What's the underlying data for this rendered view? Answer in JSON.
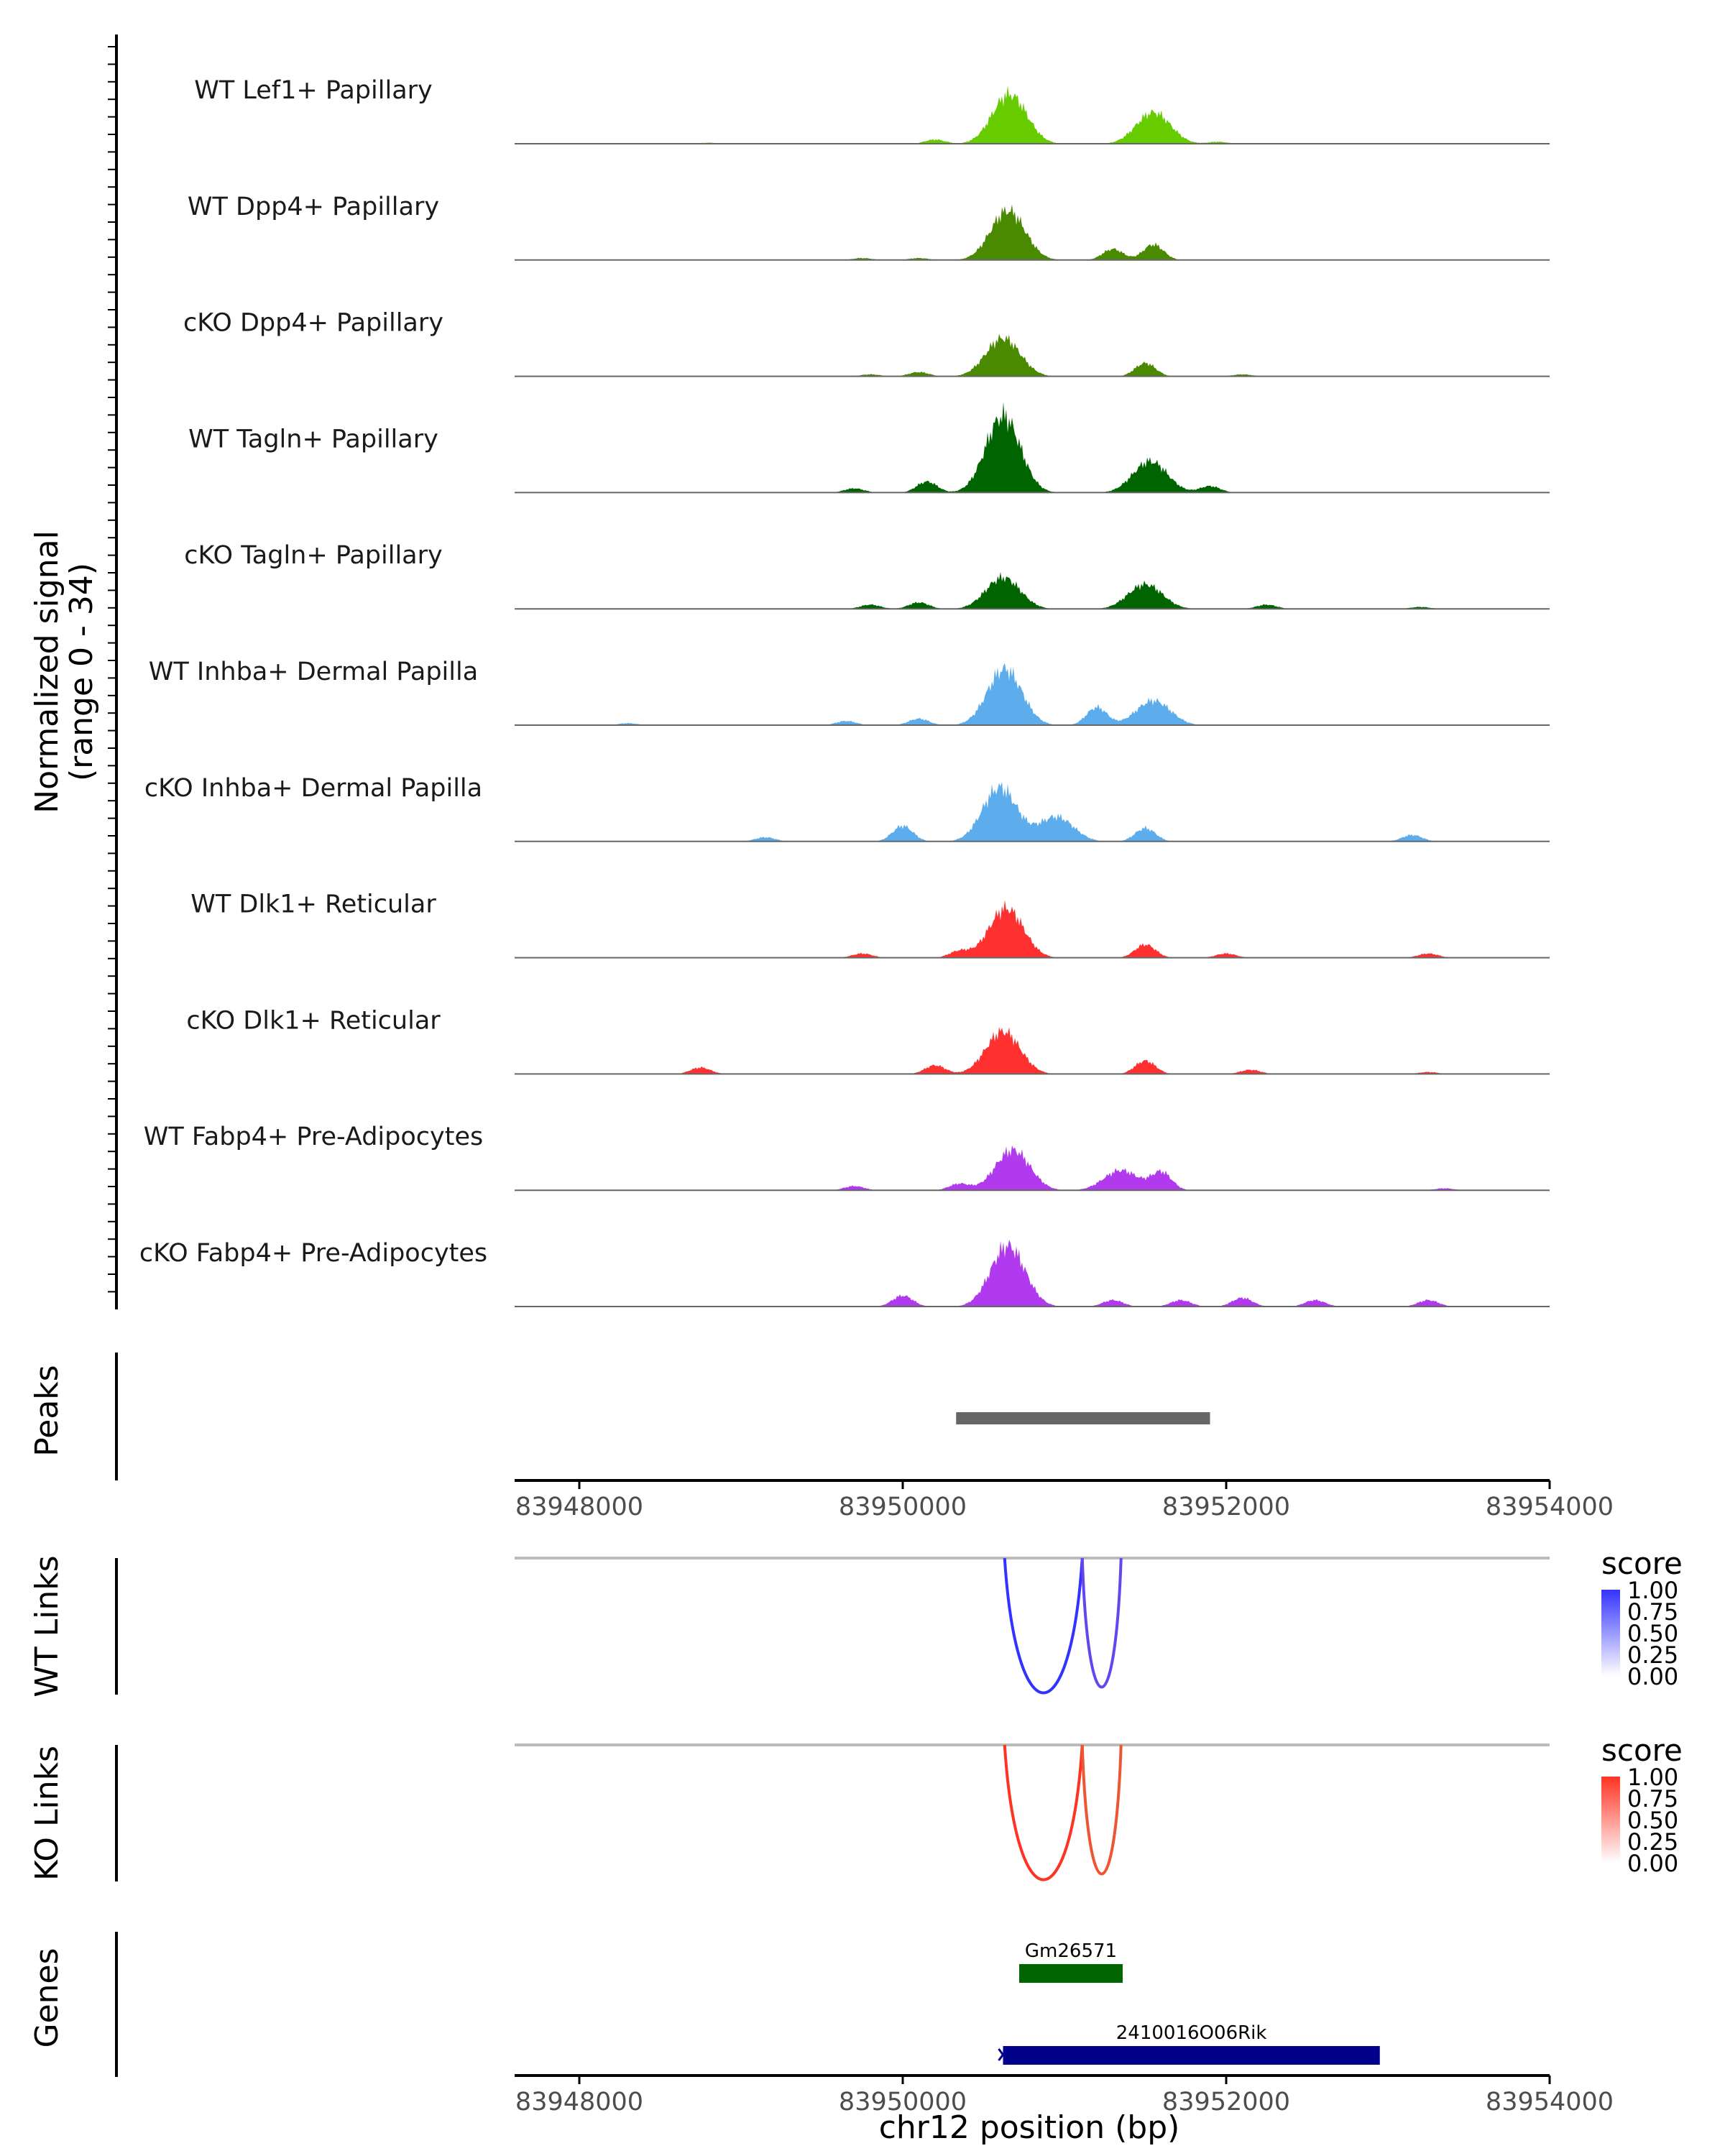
{
  "chart_data": {
    "type": "area",
    "region": "chr12",
    "x_range": [
      83947600,
      83954000
    ],
    "x_ticks": [
      83948000,
      83950000,
      83952000,
      83954000
    ],
    "x_tick_labels": [
      "83948000",
      "83950000",
      "83952000",
      "83954000"
    ],
    "xlabel": "chr12 position (bp)",
    "coverage": {
      "ylabel_line1": "Normalized signal",
      "ylabel_line2": "(range 0 - 34)",
      "ylim": [
        0,
        34
      ],
      "tracks": [
        {
          "name": "WT Lef1+ Papillary",
          "color": "#66CC00",
          "peaks": [
            [
              83950660,
              22
            ],
            [
              83951550,
              14
            ],
            [
              83950200,
              2
            ],
            [
              83951950,
              1
            ],
            [
              83948800,
              0.6
            ]
          ]
        },
        {
          "name": "WT Dpp4+ Papillary",
          "color": "#4A8A00",
          "peaks": [
            [
              83950650,
              22
            ],
            [
              83951300,
              5
            ],
            [
              83951550,
              7
            ],
            [
              83949750,
              1
            ],
            [
              83950100,
              1
            ]
          ]
        },
        {
          "name": "cKO Dpp4+ Papillary",
          "color": "#4A8A00",
          "peaks": [
            [
              83950620,
              17
            ],
            [
              83951500,
              6
            ],
            [
              83950100,
              2
            ],
            [
              83949800,
              1
            ],
            [
              83952100,
              1
            ]
          ]
        },
        {
          "name": "WT Tagln+ Papillary",
          "color": "#006400",
          "peaks": [
            [
              83950620,
              34
            ],
            [
              83951530,
              14
            ],
            [
              83950150,
              5
            ],
            [
              83949700,
              2
            ],
            [
              83951900,
              3
            ]
          ]
        },
        {
          "name": "cKO Tagln+ Papillary",
          "color": "#006400",
          "peaks": [
            [
              83950620,
              14
            ],
            [
              83951500,
              11
            ],
            [
              83950100,
              3
            ],
            [
              83949800,
              2
            ],
            [
              83952250,
              2
            ],
            [
              83953200,
              1
            ]
          ]
        },
        {
          "name": "WT Inhba+ Dermal Papilla",
          "color": "#5DADEC",
          "peaks": [
            [
              83950630,
              25
            ],
            [
              83951550,
              11
            ],
            [
              83951200,
              8
            ],
            [
              83950100,
              3
            ],
            [
              83949650,
              2
            ],
            [
              83948300,
              1
            ]
          ]
        },
        {
          "name": "cKO Inhba+ Dermal Papilla",
          "color": "#5DADEC",
          "peaks": [
            [
              83950600,
              24
            ],
            [
              83950950,
              11
            ],
            [
              83951500,
              6
            ],
            [
              83950000,
              7
            ],
            [
              83949150,
              2
            ],
            [
              83953150,
              3
            ]
          ]
        },
        {
          "name": "WT Dlk1+ Reticular",
          "color": "#FF3030",
          "peaks": [
            [
              83950640,
              22
            ],
            [
              83951500,
              6
            ],
            [
              83950350,
              3
            ],
            [
              83949750,
              2
            ],
            [
              83952000,
              2
            ],
            [
              83953250,
              2
            ]
          ]
        },
        {
          "name": "cKO Dlk1+ Reticular",
          "color": "#FF3030",
          "peaks": [
            [
              83950620,
              19
            ],
            [
              83951500,
              6
            ],
            [
              83950200,
              4
            ],
            [
              83948750,
              3
            ],
            [
              83952150,
              2
            ],
            [
              83953250,
              1
            ]
          ]
        },
        {
          "name": "WT Fabp4+ Pre-Adipocytes",
          "color": "#B23AEE",
          "peaks": [
            [
              83950680,
              18
            ],
            [
              83951350,
              9
            ],
            [
              83951600,
              8
            ],
            [
              83950350,
              3
            ],
            [
              83949700,
              2
            ],
            [
              83953350,
              1
            ]
          ]
        },
        {
          "name": "cKO Fabp4+ Pre-Adipocytes",
          "color": "#B23AEE",
          "peaks": [
            [
              83950650,
              27
            ],
            [
              83950000,
              5
            ],
            [
              83951300,
              3
            ],
            [
              83951720,
              3
            ],
            [
              83952100,
              4
            ],
            [
              83952550,
              3
            ],
            [
              83953250,
              3
            ]
          ]
        }
      ]
    },
    "peaks_track": {
      "label": "Peaks",
      "intervals": [
        [
          83950330,
          83951900
        ]
      ],
      "color": "#666666"
    },
    "links": [
      {
        "label": "WT Links",
        "color_high": "#3333FF",
        "color_low": "#FFFFFF",
        "legend_title": "score",
        "legend_ticks": [
          "1.00",
          "0.75",
          "0.50",
          "0.25",
          "0.00"
        ],
        "arcs": [
          [
            83950630,
            83951110,
            0.9
          ],
          [
            83951110,
            83951350,
            0.75
          ]
        ]
      },
      {
        "label": "KO Links",
        "color_high": "#FF3322",
        "color_low": "#FFFFFF",
        "legend_title": "score",
        "legend_ticks": [
          "1.00",
          "0.75",
          "0.50",
          "0.25",
          "0.00"
        ],
        "arcs": [
          [
            83950630,
            83951110,
            0.9
          ],
          [
            83951110,
            83951350,
            0.75
          ]
        ]
      }
    ],
    "genes": {
      "label": "Genes",
      "items": [
        {
          "name": "Gm26571",
          "start": 83950720,
          "end": 83951360,
          "color": "#006400",
          "row": 0
        },
        {
          "name": "2410016O06Rik",
          "start": 83950620,
          "end": 83952950,
          "color": "#00008B",
          "row": 1
        }
      ]
    }
  }
}
